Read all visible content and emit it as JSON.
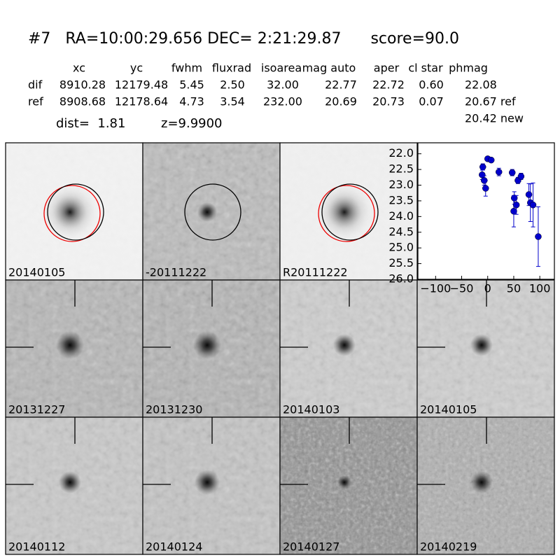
{
  "header": {
    "title": "#7   RA=10:00:29.656 DEC= 2:21:29.87      score=90.0"
  },
  "table": {
    "header": [
      "xc",
      "yc",
      "fwhm",
      "fluxrad",
      "isoarea",
      "mag auto",
      "aper",
      "cl star",
      "phmag"
    ],
    "rows": [
      [
        "dif",
        "8910.28",
        "12179.48",
        "5.45",
        "2.50",
        "32.00",
        "22.77",
        "22.72",
        "0.60",
        "22.08"
      ],
      [
        "ref",
        "8908.68",
        "12178.64",
        "4.73",
        "3.54",
        "232.00",
        "20.69",
        "20.73",
        "0.07",
        "20.67 ref"
      ]
    ],
    "extra": "20.42 new"
  },
  "dist": "dist=  1.81",
  "z": "z=9.9900",
  "panels": [
    {
      "label": "20140105"
    },
    {
      "label": "-20111222"
    },
    {
      "label": "R20111222"
    },
    {
      "label": "20131227"
    },
    {
      "label": "20131230"
    },
    {
      "label": "20140103"
    },
    {
      "label": "20140105",
      "label_color": "#ff0000"
    },
    {
      "label": "20140112"
    },
    {
      "label": "20140124"
    },
    {
      "label": "20140127"
    },
    {
      "label": "20140219"
    }
  ],
  "chart_data": {
    "type": "errorbar",
    "x": [
      -9.4,
      -10.7,
      -6.7,
      -4,
      0,
      6.7,
      21.5,
      47,
      51,
      50,
      55,
      58,
      64,
      79,
      82,
      87,
      97
    ],
    "values": [
      22.42,
      22.67,
      22.85,
      23.1,
      22.16,
      22.2,
      22.58,
      22.6,
      23.41,
      23.83,
      23.63,
      22.85,
      22.72,
      23.3,
      23.56,
      23.63,
      24.64
    ],
    "errors": [
      0.1,
      0.15,
      0.15,
      0.25,
      0.05,
      0.05,
      0.12,
      0.1,
      0.2,
      0.5,
      0.3,
      0.1,
      0.1,
      0.35,
      0.6,
      0.7,
      0.95
    ],
    "color": "#0000cc",
    "xlim": [
      -134,
      128
    ],
    "ylim": [
      21.65,
      26
    ],
    "y_inverted": true,
    "xticks": [
      {
        "value": -100,
        "label": "−100"
      },
      {
        "value": -50,
        "label": "−50"
      },
      0,
      50,
      100
    ],
    "yticks": [
      {
        "value": 22,
        "label": "22.0"
      },
      {
        "value": 22.5,
        "label": "22.5"
      },
      {
        "value": 23,
        "label": "23.0"
      },
      {
        "value": 23.5,
        "label": "23.5"
      },
      {
        "value": 24,
        "label": "24.0"
      },
      {
        "value": 24.5,
        "label": "24.5"
      },
      {
        "value": 25,
        "label": "25.0"
      },
      {
        "value": 25.5,
        "label": "25.5"
      },
      {
        "value": 26,
        "label": "26.0"
      }
    ]
  }
}
